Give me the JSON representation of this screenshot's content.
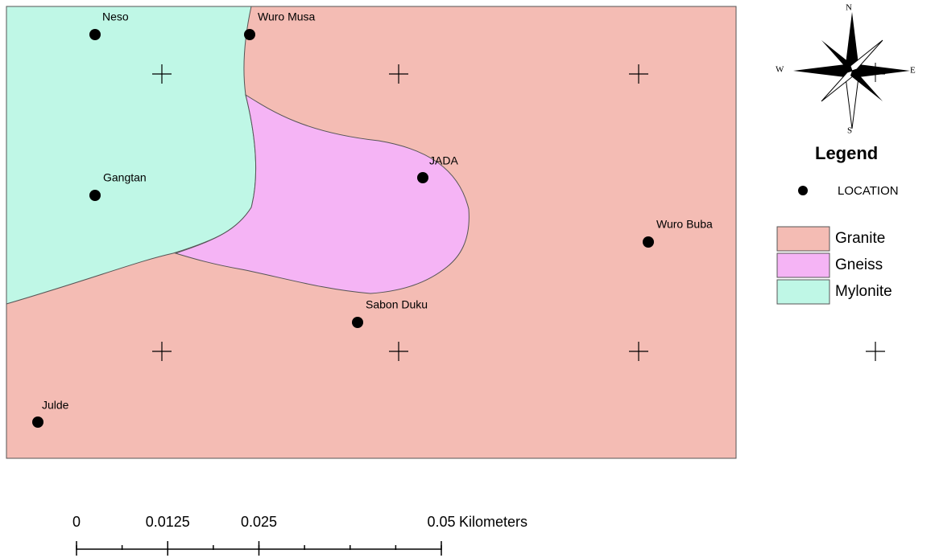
{
  "compass": {
    "north": "N",
    "south": "S",
    "east": "E",
    "west": "W"
  },
  "legend": {
    "title": "Legend",
    "items": [
      {
        "label": "LOCATION",
        "color": "#000000"
      },
      {
        "label": "Granite",
        "color": "#f4bcb4"
      },
      {
        "label": "Gneiss",
        "color": "#f5b4f5"
      },
      {
        "label": "Mylonite",
        "color": "#bff7e6"
      }
    ]
  },
  "locations": [
    {
      "name": "Neso"
    },
    {
      "name": "Wuro Musa"
    },
    {
      "name": "Gangtan"
    },
    {
      "name": "JADA"
    },
    {
      "name": "Wuro Buba"
    },
    {
      "name": "Sabon Duku"
    },
    {
      "name": "Julde"
    }
  ],
  "scale_bar": {
    "ticks": [
      0,
      0.0125,
      0.025,
      0.05
    ],
    "unit": "Kilometers"
  }
}
